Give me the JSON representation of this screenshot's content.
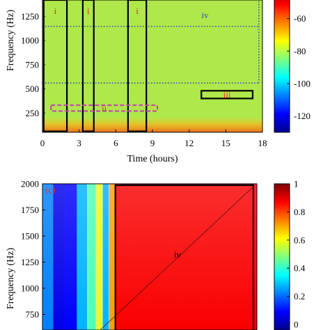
{
  "chart_data": [
    {
      "type": "heatmap",
      "title": "",
      "panel_label": "",
      "xlabel": "Time (hours)",
      "ylabel": "Frequency (Hz)",
      "x_ticks": [
        "0",
        "3",
        "6",
        "9",
        "12",
        "15",
        "18"
      ],
      "y_ticks": [
        "250",
        "500",
        "750",
        "1000",
        "1250"
      ],
      "xlim": [
        0,
        18
      ],
      "ylim": [
        50,
        1420
      ],
      "colorbar": {
        "ticks": [
          "-60",
          "-80",
          "-100",
          "-120"
        ],
        "range": [
          -130,
          -40
        ]
      },
      "background_color": "#aee84a",
      "dotted_line": {
        "frequency": 560,
        "x_from": 0,
        "x_to": 17.7,
        "color": "#2b4db0"
      },
      "boxes": [
        {
          "label": "i",
          "x": [
            0.1,
            2.0
          ],
          "y": [
            60,
            1420
          ],
          "style": "solid",
          "label_color": "#e0302a"
        },
        {
          "label": "i",
          "x": [
            3.3,
            4.2
          ],
          "y": [
            60,
            1420
          ],
          "style": "solid",
          "label_color": "#e0302a"
        },
        {
          "label": "i",
          "x": [
            7.0,
            8.5
          ],
          "y": [
            60,
            1420
          ],
          "style": "solid",
          "label_color": "#e0302a"
        },
        {
          "label": "ii",
          "x": [
            0.7,
            9.4
          ],
          "y": [
            270,
            330
          ],
          "style": "dashed",
          "label_color": "#e0302a"
        },
        {
          "label": "iii",
          "x": [
            13.0,
            17.2
          ],
          "y": [
            400,
            480
          ],
          "style": "solid",
          "label_color": "#e0302a"
        },
        {
          "label": "iv",
          "x": [
            12.3,
            14.3
          ],
          "y": [
            1340,
            1390
          ],
          "style": "none",
          "label_color": "#2b4db0"
        }
      ]
    },
    {
      "type": "heatmap",
      "title": "",
      "panel_label": "(c)",
      "xlabel": "",
      "ylabel": "Frequency (Hz)",
      "y_ticks": [
        "750",
        "1000",
        "1250",
        "1500",
        "1750",
        "2000"
      ],
      "ylim": [
        600,
        2000
      ],
      "colorbar": {
        "ticks": [
          "1",
          "0.8",
          "0.6",
          "0.4",
          "0.2",
          "0"
        ],
        "range": [
          0,
          1
        ]
      },
      "columns": [
        {
          "x_from": 0.0,
          "x_to": 0.05,
          "value": 0.25
        },
        {
          "x_from": 0.05,
          "x_to": 0.1,
          "value": 0.1
        },
        {
          "x_from": 0.1,
          "x_to": 0.16,
          "value": 0.12
        },
        {
          "x_from": 0.16,
          "x_to": 0.21,
          "value": 0.3
        },
        {
          "x_from": 0.21,
          "x_to": 0.25,
          "value": 0.45
        },
        {
          "x_from": 0.25,
          "x_to": 0.28,
          "value": 0.6
        },
        {
          "x_from": 0.28,
          "x_to": 0.31,
          "value": 0.3
        },
        {
          "x_from": 0.31,
          "x_to": 0.34,
          "value": 0.72
        },
        {
          "x_from": 0.34,
          "x_to": 1.0,
          "value": 0.88
        }
      ],
      "boxes": [
        {
          "label": "iv",
          "x": [
            0.34,
            1.0
          ],
          "y": [
            600,
            2000
          ],
          "style": "solid",
          "label_color": "#000000"
        }
      ]
    }
  ]
}
